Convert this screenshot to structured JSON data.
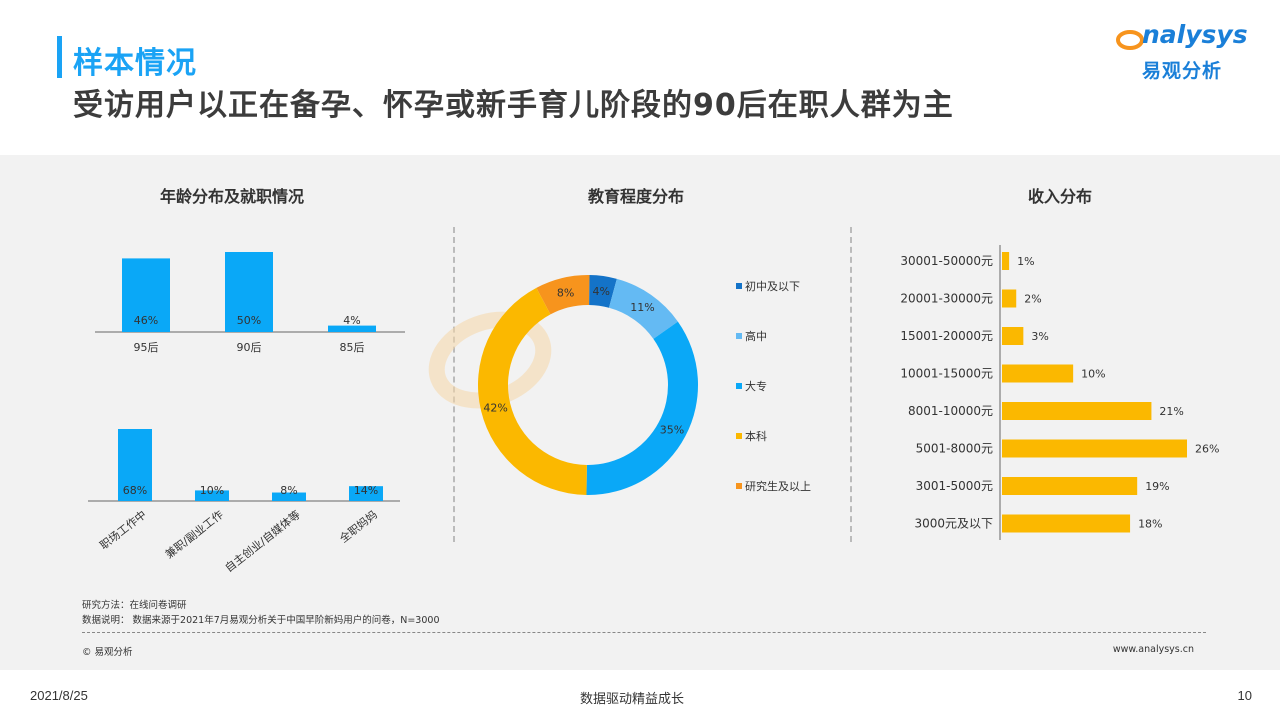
{
  "header": {
    "title": "样本情况",
    "subtitle": "受访用户以正在备孕、怀孕或新手育儿阶段的90后在职人群为主"
  },
  "logo": {
    "en": "nalysys",
    "cn": "易观分析"
  },
  "colors": {
    "blue": "#0aa8f7",
    "yellow": "#fbb800",
    "orange": "#f7941d",
    "light_blue": "#64baf3",
    "dark_blue": "#1a7fd8",
    "title_blue": "#1aa3f5"
  },
  "chart_data": [
    {
      "type": "bar",
      "title": "年龄分布及就职情况",
      "categories": [
        "95后",
        "90后",
        "85后"
      ],
      "values": [
        46,
        50,
        4
      ],
      "labels": [
        "46%",
        "50%",
        "4%"
      ]
    },
    {
      "type": "bar",
      "title": "",
      "categories": [
        "职场工作中",
        "兼职/副业工作",
        "自主创业/自媒体等",
        "全职妈妈"
      ],
      "values": [
        68,
        10,
        8,
        14
      ],
      "labels": [
        "68%",
        "10%",
        "8%",
        "14%"
      ]
    },
    {
      "type": "pie",
      "title": "教育程度分布",
      "categories": [
        "初中及以下",
        "高中",
        "大专",
        "本科",
        "研究生及以上"
      ],
      "values": [
        4,
        11,
        35,
        42,
        8
      ],
      "labels": [
        "4%",
        "11%",
        "35%",
        "42%",
        "8%"
      ],
      "colors": [
        "#1473c8",
        "#64baf3",
        "#0aa8f7",
        "#fbb800",
        "#f7941d"
      ],
      "legend_position": "right"
    },
    {
      "type": "bar",
      "orientation": "horizontal",
      "title": "收入分布",
      "categories": [
        "30001-50000元",
        "20001-30000元",
        "15001-20000元",
        "10001-15000元",
        "8001-10000元",
        "5001-8000元",
        "3001-5000元",
        "3000元及以下"
      ],
      "values": [
        1,
        2,
        3,
        10,
        21,
        26,
        19,
        18
      ],
      "labels": [
        "1%",
        "2%",
        "3%",
        "10%",
        "21%",
        "26%",
        "19%",
        "18%"
      ]
    }
  ],
  "notes": {
    "method": "研究方法：在线问卷调研",
    "source": "数据说明： 数据来源于2021年7月易观分析关于中国早阶新妈用户的问卷，N=3000",
    "copyright": "© 易观分析",
    "site": "www.analysys.cn"
  },
  "footer": {
    "date": "2021/8/25",
    "slogan": "数据驱动精益成长",
    "page": "10"
  }
}
